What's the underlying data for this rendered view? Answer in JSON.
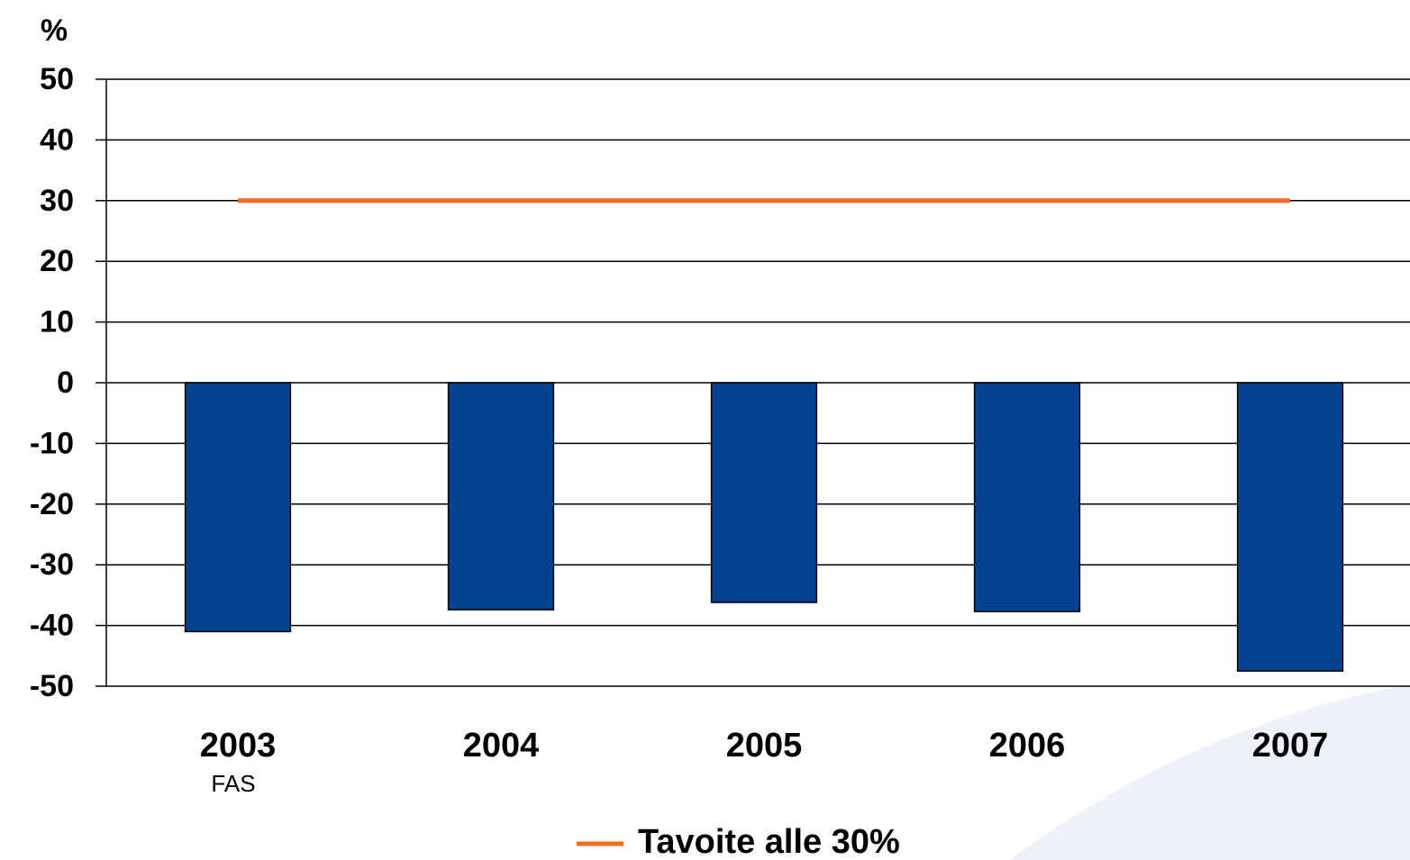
{
  "chart_data": {
    "type": "bar",
    "y_label": "%",
    "categories": [
      "2003",
      "2004",
      "2005",
      "2006",
      "2007"
    ],
    "category_sublabels": [
      "FAS",
      null,
      null,
      null,
      null
    ],
    "values": [
      -41,
      -37.4,
      -36.2,
      -37.7,
      -47.5
    ],
    "color": "#03428e",
    "series": [
      {
        "name": "Tavoite alle 30%",
        "type": "line",
        "color": "#f26b1d",
        "values": [
          30,
          30,
          30,
          30,
          30
        ]
      }
    ],
    "ylim": [
      -50,
      50
    ],
    "yticks": [
      -50,
      -40,
      -30,
      -20,
      -10,
      0,
      10,
      20,
      30,
      40,
      50
    ],
    "grid": true
  }
}
